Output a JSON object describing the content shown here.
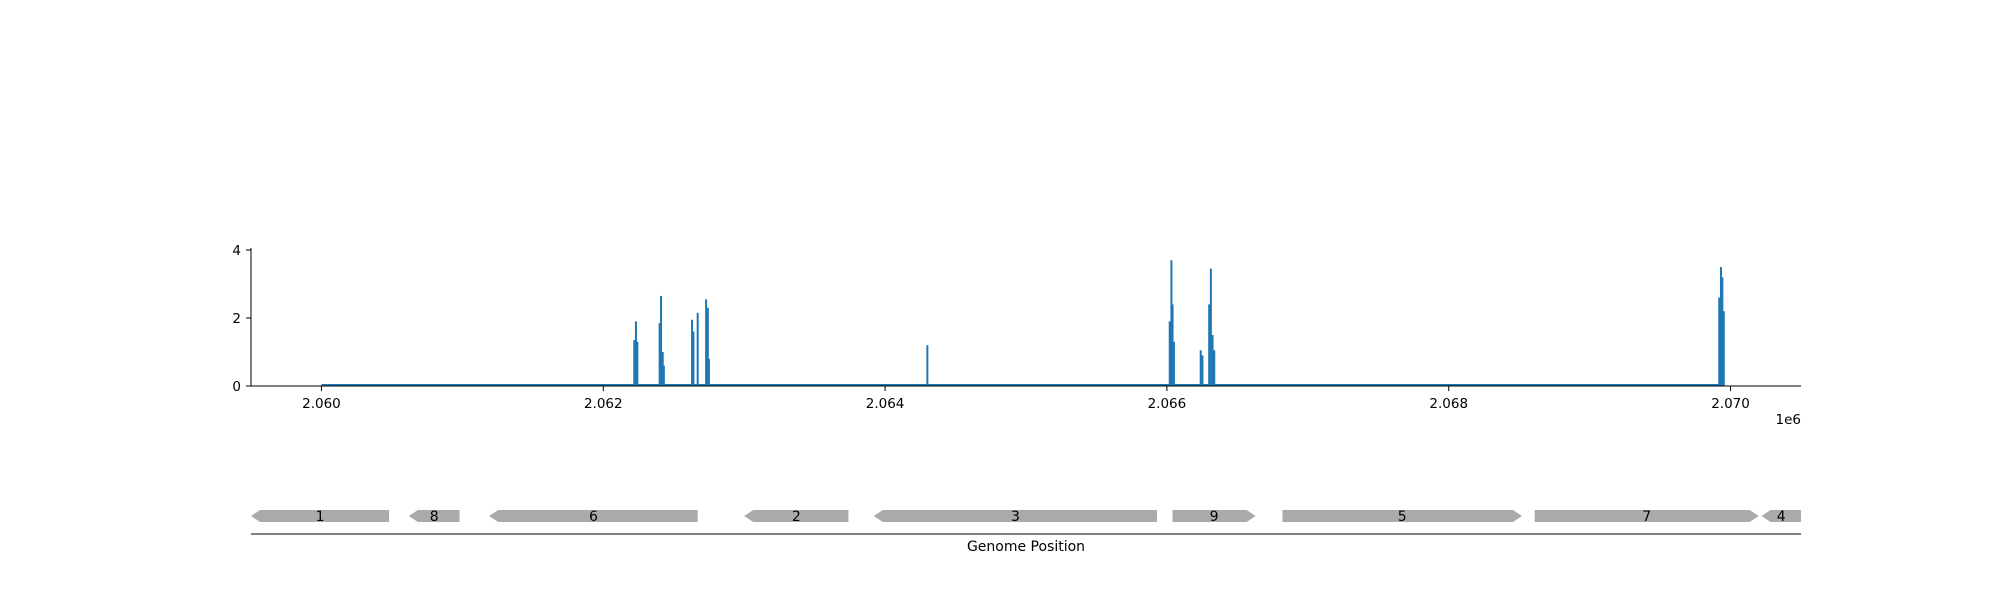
{
  "chart_data": {
    "type": "line",
    "color": "#1f77b4",
    "coverage": {
      "x_ticks": [
        2060000,
        2062000,
        2064000,
        2066000,
        2068000,
        2070000
      ],
      "x_tick_labels": [
        "2.060",
        "2.062",
        "2.064",
        "2.066",
        "2.068",
        "2.070"
      ],
      "x_offset_label": "1e6",
      "y_ticks": [
        0,
        2,
        4
      ],
      "y_tick_labels": [
        "0",
        "2",
        "4"
      ],
      "xlim": [
        2059500,
        2070500
      ],
      "ylim": [
        0,
        4
      ],
      "series_range": [
        2060000,
        2069950
      ],
      "spikes": [
        {
          "x": 2062220,
          "y": 1.35
        },
        {
          "x": 2062232,
          "y": 1.9
        },
        {
          "x": 2062242,
          "y": 1.3
        },
        {
          "x": 2062400,
          "y": 1.85
        },
        {
          "x": 2062410,
          "y": 2.65
        },
        {
          "x": 2062422,
          "y": 1.0
        },
        {
          "x": 2062430,
          "y": 0.6
        },
        {
          "x": 2062630,
          "y": 1.95
        },
        {
          "x": 2062640,
          "y": 1.6
        },
        {
          "x": 2062670,
          "y": 2.15
        },
        {
          "x": 2062730,
          "y": 2.55
        },
        {
          "x": 2062742,
          "y": 2.3
        },
        {
          "x": 2062750,
          "y": 0.8
        },
        {
          "x": 2064300,
          "y": 1.2
        },
        {
          "x": 2066020,
          "y": 1.9
        },
        {
          "x": 2066032,
          "y": 3.7
        },
        {
          "x": 2066040,
          "y": 2.4
        },
        {
          "x": 2066050,
          "y": 1.3
        },
        {
          "x": 2066240,
          "y": 1.05
        },
        {
          "x": 2066252,
          "y": 0.9
        },
        {
          "x": 2066300,
          "y": 2.4
        },
        {
          "x": 2066312,
          "y": 3.45
        },
        {
          "x": 2066324,
          "y": 1.5
        },
        {
          "x": 2066336,
          "y": 1.05
        },
        {
          "x": 2069920,
          "y": 2.6
        },
        {
          "x": 2069932,
          "y": 3.5
        },
        {
          "x": 2069942,
          "y": 3.2
        },
        {
          "x": 2069952,
          "y": 2.2
        }
      ]
    },
    "genes": {
      "xlabel": "Genome Position",
      "items": [
        {
          "label": "1",
          "start": 2059500,
          "end": 2060480,
          "strand": "-"
        },
        {
          "label": "8",
          "start": 2060620,
          "end": 2060980,
          "strand": "-"
        },
        {
          "label": "6",
          "start": 2061190,
          "end": 2062670,
          "strand": "-"
        },
        {
          "label": "2",
          "start": 2063000,
          "end": 2063740,
          "strand": "-"
        },
        {
          "label": "3",
          "start": 2063920,
          "end": 2065930,
          "strand": "-"
        },
        {
          "label": "9",
          "start": 2066040,
          "end": 2066630,
          "strand": "+"
        },
        {
          "label": "5",
          "start": 2066820,
          "end": 2068520,
          "strand": "+"
        },
        {
          "label": "7",
          "start": 2068610,
          "end": 2070200,
          "strand": "+"
        },
        {
          "label": "4",
          "start": 2070220,
          "end": 2070500,
          "strand": "-"
        }
      ]
    }
  }
}
